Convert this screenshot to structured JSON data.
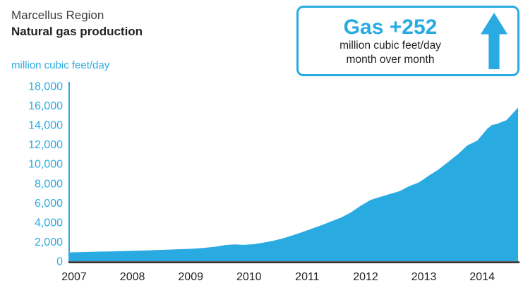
{
  "header": {
    "title_line1": "Marcellus Region",
    "title_line2": "Natural gas production",
    "unit_label": "million cubic feet/day"
  },
  "callout": {
    "gas_label": "Gas",
    "delta": "+252",
    "line1": "million cubic feet/day",
    "line2": "month over month"
  },
  "colors": {
    "accent": "#29abe2",
    "text_dark": "#231f20",
    "title_gray": "#414042"
  },
  "chart_data": {
    "type": "area",
    "title": "Marcellus Region",
    "subtitle": "Natural gas production",
    "xlabel": "",
    "ylabel": "million cubic feet/day",
    "grid": false,
    "legend": "none",
    "xlim": [
      2007,
      2014.7
    ],
    "ylim": [
      0,
      18000
    ],
    "x_ticks": [
      2007,
      2008,
      2009,
      2010,
      2011,
      2012,
      2013,
      2014
    ],
    "y_ticks": [
      0,
      2000,
      4000,
      6000,
      8000,
      10000,
      12000,
      14000,
      16000,
      18000
    ],
    "annotation": "Gas +252 million cubic feet/day month over month",
    "series": [
      {
        "name": "Marcellus natural gas production (million cubic feet/day)",
        "color": "#29abe2",
        "x": [
          2007.0,
          2007.17,
          2007.33,
          2007.5,
          2007.67,
          2007.83,
          2008.0,
          2008.17,
          2008.33,
          2008.5,
          2008.67,
          2008.83,
          2009.0,
          2009.17,
          2009.33,
          2009.5,
          2009.67,
          2009.83,
          2010.0,
          2010.17,
          2010.33,
          2010.5,
          2010.67,
          2010.83,
          2011.0,
          2011.17,
          2011.33,
          2011.5,
          2011.67,
          2011.83,
          2012.0,
          2012.17,
          2012.33,
          2012.5,
          2012.67,
          2012.83,
          2013.0,
          2013.17,
          2013.33,
          2013.5,
          2013.67,
          2013.83,
          2014.0,
          2014.17,
          2014.25,
          2014.33,
          2014.5,
          2014.58,
          2014.7
        ],
        "y": [
          900,
          930,
          950,
          980,
          1000,
          1020,
          1050,
          1080,
          1100,
          1150,
          1180,
          1220,
          1250,
          1300,
          1380,
          1480,
          1650,
          1720,
          1680,
          1750,
          1900,
          2100,
          2350,
          2650,
          3000,
          3350,
          3700,
          4100,
          4500,
          5000,
          5700,
          6300,
          6600,
          6900,
          7200,
          7700,
          8100,
          8800,
          9400,
          10200,
          11000,
          11900,
          12400,
          13600,
          14000,
          14100,
          14500,
          15000,
          15800
        ]
      }
    ]
  }
}
